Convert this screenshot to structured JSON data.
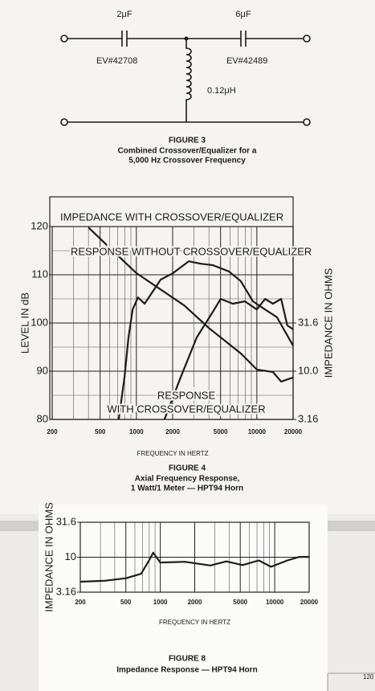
{
  "figure_3": {
    "capacitor_1": "2μF",
    "capacitor_2": "6μF",
    "part_1": "EV#42708",
    "part_2": "EV#42489",
    "inductor": "0.12μH",
    "caption": [
      "FIGURE 3",
      "Combined Crossover/Equalizer for a",
      "5,000 Hz Crossover Frequency"
    ]
  },
  "chart_data": [
    {
      "type": "line",
      "title": "FIGURE 4",
      "subtitle": [
        "Axial Frequency Response,",
        "1 Watt/1 Meter — HPT94 Horn"
      ],
      "xlabel": "FREQUENCY IN HERTZ",
      "ylabel": "LEVEL IN dB",
      "y2label": "IMPEDANCE IN OHMS",
      "xscale": "log",
      "y2scale": "log",
      "grid": true,
      "xlim": [
        200,
        20000
      ],
      "xticks": [
        200,
        500,
        1000,
        2000,
        5000,
        10000,
        20000
      ],
      "minor_xticks": [
        300,
        400,
        600,
        700,
        800,
        900,
        3000,
        4000,
        6000,
        7000,
        8000,
        9000
      ],
      "ylim": [
        80,
        120
      ],
      "yticks": [
        80,
        90,
        100,
        110,
        120
      ],
      "minor_yticks": [
        85,
        95,
        105,
        115
      ],
      "y2lim": [
        3.16,
        316
      ],
      "y2ticks": [
        3.16,
        {
          "value": 10,
          "label": "10.0"
        },
        31.6
      ],
      "series": [
        {
          "name": "IMPEDANCE WITH CROSSOVER/EQUALIZER",
          "axis": "y2",
          "color": "#1c1c1c",
          "x": [
            400,
            1000,
            2500,
            4000,
            7400,
            10000,
            13600,
            15900,
            20000
          ],
          "values": [
            309,
            104,
            48,
            28,
            15.2,
            10.4,
            9.8,
            7.8,
            8.6
          ]
        },
        {
          "name": "RESPONSE WITHOUT CROSSOVER/EQUALIZER",
          "color": "#1c1c1c",
          "x": [
            714,
            796,
            860,
            931,
            1030,
            1170,
            1590,
            2000,
            2720,
            3420,
            4310,
            5860,
            7350,
            9280,
            11700,
            14700,
            20000
          ],
          "values": [
            80,
            88.7,
            97,
            102.8,
            105.3,
            104,
            109,
            110.3,
            112.8,
            112.3,
            112,
            110.7,
            108.7,
            104.5,
            102.8,
            101.2,
            95.3
          ]
        },
        {
          "name": "RESPONSE",
          "color": "#1c1c1c",
          "x": [
            1710,
            2330,
            3170,
            4310,
            5010,
            6320,
            7960,
            10000,
            11700,
            13600,
            15900,
            17900,
            20000
          ],
          "values": [
            80,
            88.7,
            97,
            102.3,
            105,
            104,
            104.5,
            102.8,
            105,
            104,
            105,
            99.5,
            98.7
          ]
        }
      ],
      "annotations": [
        "WITH CROSSOVER/EQUALIZER"
      ]
    },
    {
      "type": "line",
      "title": "FIGURE 8",
      "subtitle": [
        "Impedance Response — HPT94 Horn"
      ],
      "xlabel": "FREQUENCY IN HERTZ",
      "ylabel": "IMPEDANCE IN OHMS",
      "xscale": "log",
      "yscale": "log",
      "grid": true,
      "xlim": [
        200,
        20000
      ],
      "xticks": [
        200,
        500,
        1000,
        2000,
        5000,
        10000,
        20000
      ],
      "minor_xticks": [
        300,
        400,
        600,
        700,
        800,
        900,
        3000,
        4000,
        6000,
        7000,
        8000,
        9000
      ],
      "ylim": [
        3.16,
        31.6
      ],
      "yticks": [
        3.16,
        10,
        31.6
      ],
      "color": "#1c1c1c",
      "x": [
        200,
        326,
        500,
        681,
        802,
        868,
        1000,
        1640,
        2730,
        3780,
        5240,
        7260,
        9280,
        12900,
        16400,
        20000
      ],
      "values": [
        4.46,
        4.6,
        5.0,
        5.8,
        9.1,
        11.6,
        8.4,
        8.6,
        7.6,
        8.7,
        7.7,
        9.0,
        7.3,
        9.0,
        10.1,
        10.1
      ]
    }
  ],
  "fragment": "120"
}
